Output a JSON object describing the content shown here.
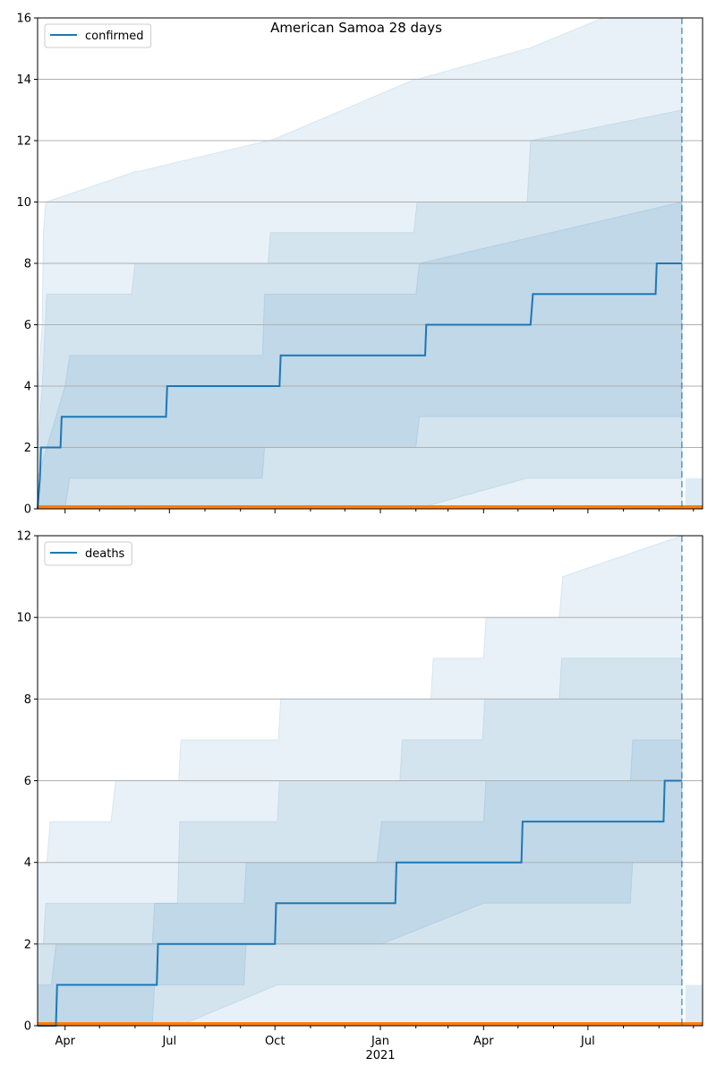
{
  "figure": {
    "title": "American Samoa 28 days",
    "x_year_label": "2021",
    "x_tick_labels": [
      "Apr",
      "Jul",
      "Oct",
      "Jan",
      "Apr",
      "Jul"
    ]
  },
  "colors": {
    "series": "#1f77b4",
    "baseline": "#ff7f0e",
    "band": "#1f77b4",
    "grid": "#b0b0b0"
  },
  "chart_data": [
    {
      "type": "line",
      "series_name": "confirmed",
      "legend": "upper-left",
      "grid": "horizontal",
      "xlim": [
        "2020-03-08",
        "2021-10-09"
      ],
      "ylim": [
        0,
        16
      ],
      "yticks": [
        0,
        2,
        4,
        6,
        8,
        10,
        12,
        14,
        16
      ],
      "x_ticks": [
        "2020-04-01",
        "2020-07-01",
        "2020-10-01",
        "2021-01-01",
        "2021-04-01",
        "2021-07-01"
      ],
      "forecast_start": "2021-09-21",
      "x": [
        "2020-03-08",
        "2020-03-10",
        "2020-03-11",
        "2020-03-28",
        "2020-03-29",
        "2020-06-28",
        "2020-06-29",
        "2020-10-05",
        "2020-10-06",
        "2021-02-09",
        "2021-02-10",
        "2021-05-12",
        "2021-05-13",
        "2021-05-14",
        "2021-08-29",
        "2021-08-30",
        "2021-09-21"
      ],
      "values": [
        0,
        1,
        2,
        2,
        3,
        3,
        4,
        4,
        5,
        5,
        6,
        6,
        6.5,
        7,
        7,
        8,
        8
      ],
      "bands": [
        {
          "x": [
            "2020-03-08",
            "2020-03-10",
            "2020-03-12",
            "2020-03-13",
            "2020-03-15",
            "2020-06-02",
            "2020-06-04",
            "2020-09-25",
            "2020-09-27",
            "2021-01-31",
            "2021-02-02",
            "2021-05-09",
            "2021-05-10",
            "2021-07-14",
            "2021-07-16",
            "2021-09-21"
          ],
          "low": [
            0,
            0,
            0,
            0,
            0,
            0,
            0,
            0,
            0,
            0,
            0,
            0,
            0,
            0,
            0,
            0
          ],
          "high": [
            3,
            5,
            6,
            9,
            10,
            11,
            11,
            12,
            12,
            14,
            14,
            15,
            15,
            16,
            16,
            16
          ]
        },
        {
          "x": [
            "2020-03-08",
            "2020-03-12",
            "2020-03-16",
            "2020-05-29",
            "2020-06-01",
            "2020-09-25",
            "2020-09-27",
            "2021-01-30",
            "2021-02-02",
            "2021-05-09",
            "2021-05-12",
            "2021-09-21"
          ],
          "low": [
            0,
            0,
            0,
            0,
            0,
            0,
            0,
            0,
            0,
            1,
            1,
            1
          ],
          "high": [
            2,
            4,
            7,
            7,
            8,
            8,
            9,
            9,
            10,
            10,
            12,
            13
          ]
        },
        {
          "x": [
            "2020-03-08",
            "2020-04-01",
            "2020-04-05",
            "2020-09-20",
            "2020-09-22",
            "2021-02-01",
            "2021-02-04",
            "2021-09-21"
          ],
          "low": [
            0,
            0,
            1,
            1,
            2,
            2,
            3,
            3
          ],
          "high": [
            1,
            4,
            5,
            5,
            7,
            7,
            8,
            10
          ]
        }
      ]
    },
    {
      "type": "line",
      "series_name": "deaths",
      "legend": "upper-left",
      "grid": "horizontal",
      "xlim": [
        "2020-03-08",
        "2021-10-09"
      ],
      "ylim": [
        0,
        12
      ],
      "yticks": [
        0,
        2,
        4,
        6,
        8,
        10,
        12
      ],
      "x_ticks": [
        "2020-04-01",
        "2020-07-01",
        "2020-10-01",
        "2021-01-01",
        "2021-04-01",
        "2021-07-01"
      ],
      "forecast_start": "2021-09-21",
      "x": [
        "2020-03-08",
        "2020-03-24",
        "2020-03-25",
        "2020-06-20",
        "2020-06-21",
        "2020-10-01",
        "2020-10-02",
        "2021-01-14",
        "2021-01-15",
        "2021-05-04",
        "2021-05-05",
        "2021-09-05",
        "2021-09-06",
        "2021-09-21"
      ],
      "values": [
        0,
        0,
        1,
        1,
        2,
        2,
        3,
        3,
        4,
        4,
        5,
        5,
        6,
        6
      ],
      "bands": [
        {
          "x": [
            "2020-03-08",
            "2020-03-16",
            "2020-03-19",
            "2020-05-11",
            "2020-05-15",
            "2020-07-09",
            "2020-07-11",
            "2020-10-04",
            "2020-10-06",
            "2021-02-14",
            "2021-02-16",
            "2021-04-01",
            "2021-04-03",
            "2021-06-06",
            "2021-06-09",
            "2021-09-21"
          ],
          "low": [
            0,
            0,
            0,
            0,
            0,
            0,
            0,
            0,
            0,
            0,
            0,
            0,
            0,
            0,
            0,
            0
          ],
          "high": [
            4,
            4,
            5,
            5,
            6,
            6,
            7,
            7,
            8,
            8,
            9,
            9,
            10,
            10,
            11,
            12
          ]
        },
        {
          "x": [
            "2020-03-08",
            "2020-03-13",
            "2020-03-15",
            "2020-07-08",
            "2020-07-10",
            "2020-10-03",
            "2020-10-05",
            "2021-01-18",
            "2021-01-20",
            "2021-03-31",
            "2021-04-02",
            "2021-06-06",
            "2021-06-08",
            "2021-09-21"
          ],
          "low": [
            0,
            0,
            0,
            0,
            0,
            1,
            1,
            1,
            1,
            1,
            1,
            1,
            1,
            1
          ],
          "high": [
            2,
            2,
            3,
            3,
            5,
            5,
            6,
            6,
            7,
            7,
            8,
            8,
            9,
            9
          ]
        },
        {
          "x": [
            "2020-03-08",
            "2020-03-20",
            "2020-03-24",
            "2020-06-16",
            "2020-06-18",
            "2020-09-04",
            "2020-09-06",
            "2020-12-29",
            "2021-01-02",
            "2021-04-01",
            "2021-04-03",
            "2021-08-07",
            "2021-08-09",
            "2021-09-21"
          ],
          "low": [
            0,
            0,
            0,
            0,
            1,
            1,
            2,
            2,
            2,
            3,
            3,
            3,
            4,
            4
          ],
          "high": [
            1,
            1,
            2,
            2,
            3,
            3,
            4,
            4,
            5,
            5,
            6,
            6,
            7,
            7
          ]
        }
      ]
    }
  ]
}
